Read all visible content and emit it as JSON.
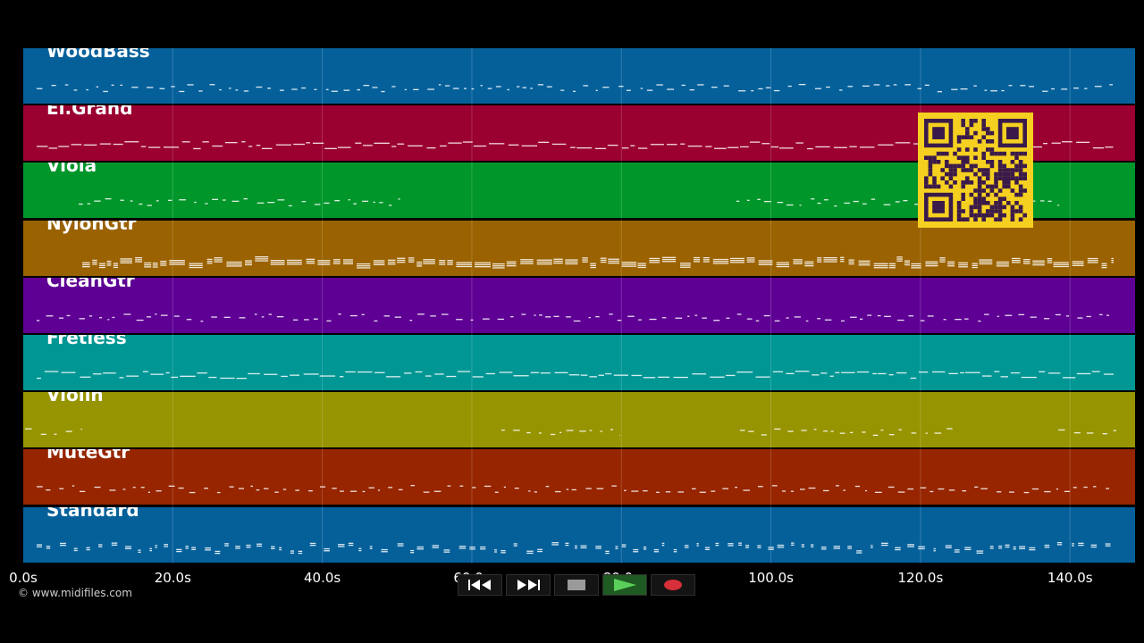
{
  "tracks": [
    {
      "name": "WoodBass",
      "color": "#05609a",
      "pattern": "sparse-bass"
    },
    {
      "name": "El.Grand",
      "color": "#9a0030",
      "pattern": "dense"
    },
    {
      "name": "Viola",
      "color": "#00962a",
      "pattern": "sparse-phrases"
    },
    {
      "name": "NylonGtr",
      "color": "#9a6200",
      "pattern": "chords"
    },
    {
      "name": "CleanGtr",
      "color": "#5e0094",
      "pattern": "dotted"
    },
    {
      "name": "Fretless",
      "color": "#009694",
      "pattern": "dense-line"
    },
    {
      "name": "Violin",
      "color": "#969400",
      "pattern": "phrases"
    },
    {
      "name": "MuteGtr",
      "color": "#962500",
      "pattern": "dotted"
    },
    {
      "name": "Standard",
      "color": "#05609a",
      "pattern": "drums"
    }
  ],
  "time_axis": {
    "labels": [
      "0.0s",
      "20.0s",
      "40.0s",
      "60.0s",
      "80.0s",
      "100.0s",
      "120.0s",
      "140.0s"
    ],
    "seconds": [
      0,
      20,
      40,
      60,
      80,
      100,
      120,
      140
    ],
    "max_seconds": 148.7
  },
  "copyright": "© www.midifiles.com",
  "transport": {
    "rewind_icon": "rewind-icon",
    "fast_forward_icon": "fast-forward-icon",
    "stop_icon": "stop-icon",
    "play_icon": "play-icon",
    "record_icon": "record-icon"
  },
  "qr_code": {
    "color": "#f5d020",
    "module_color": "#3a1a4a"
  }
}
